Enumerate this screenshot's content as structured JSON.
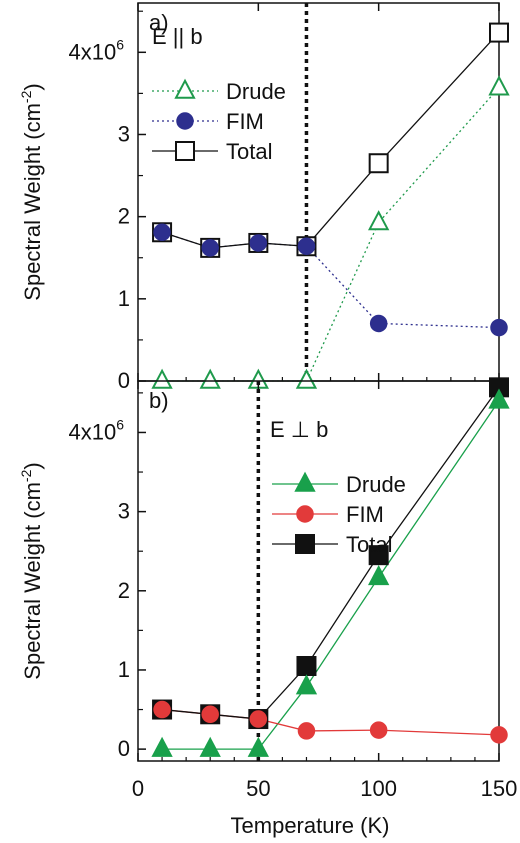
{
  "colors": {
    "axis": "#111111",
    "drude_open": "#1f9a4c",
    "fim_blue": "#2d2f8e",
    "drude_green": "#19a04b",
    "fim_red": "#e23a3a",
    "total": "#111111"
  },
  "shared": {
    "xlabel": "Temperature (K)",
    "xlim": [
      0,
      150
    ],
    "xticks": [
      "0",
      "50",
      "100",
      "150"
    ],
    "exponent_prefix": "4x10",
    "exponent_sup": "6"
  },
  "chart_data": [
    {
      "type": "line",
      "panel_label": "a)",
      "polarization": "E || b",
      "ylabel": "Spectral Weight (cm",
      "ylabel_sup": "-2",
      "ylabel_close": ")",
      "ylim": [
        0,
        4.6
      ],
      "yticks": [
        "0",
        "1",
        "2",
        "3"
      ],
      "ytick_top_value": 4,
      "x": [
        10,
        30,
        50,
        70,
        100,
        150
      ],
      "vline_x": 70,
      "series": [
        {
          "name": "Drude",
          "marker": "triangle-open",
          "dash": "dotted",
          "values": [
            0,
            0,
            0,
            0,
            1.93,
            3.57
          ]
        },
        {
          "name": "FIM",
          "marker": "circle-filled",
          "dash": "dotted",
          "values": [
            1.81,
            1.62,
            1.68,
            1.64,
            0.7,
            0.65
          ]
        },
        {
          "name": "Total",
          "marker": "square-open",
          "dash": "solid",
          "values": [
            1.81,
            1.62,
            1.68,
            1.64,
            2.65,
            4.24
          ]
        }
      ]
    },
    {
      "type": "line",
      "panel_label": "b)",
      "polarization": "E ⊥ b",
      "ylabel": "Spectral Weight (cm",
      "ylabel_sup": "-2",
      "ylabel_close": ")",
      "ylim": [
        -0.15,
        4.65
      ],
      "yticks": [
        "0",
        "1",
        "2",
        "3"
      ],
      "ytick_top_value": 4,
      "x": [
        10,
        30,
        50,
        70,
        100,
        150
      ],
      "vline_x": 50,
      "series": [
        {
          "name": "Drude",
          "marker": "triangle-filled",
          "dash": "solid",
          "values": [
            0,
            0,
            0,
            0.79,
            2.17,
            4.4
          ]
        },
        {
          "name": "FIM",
          "marker": "circle-filled",
          "dash": "solid",
          "values": [
            0.5,
            0.44,
            0.38,
            0.23,
            0.24,
            0.18
          ]
        },
        {
          "name": "Total",
          "marker": "square-filled",
          "dash": "solid",
          "values": [
            0.5,
            0.44,
            0.38,
            1.05,
            2.45,
            4.57
          ]
        }
      ]
    }
  ]
}
